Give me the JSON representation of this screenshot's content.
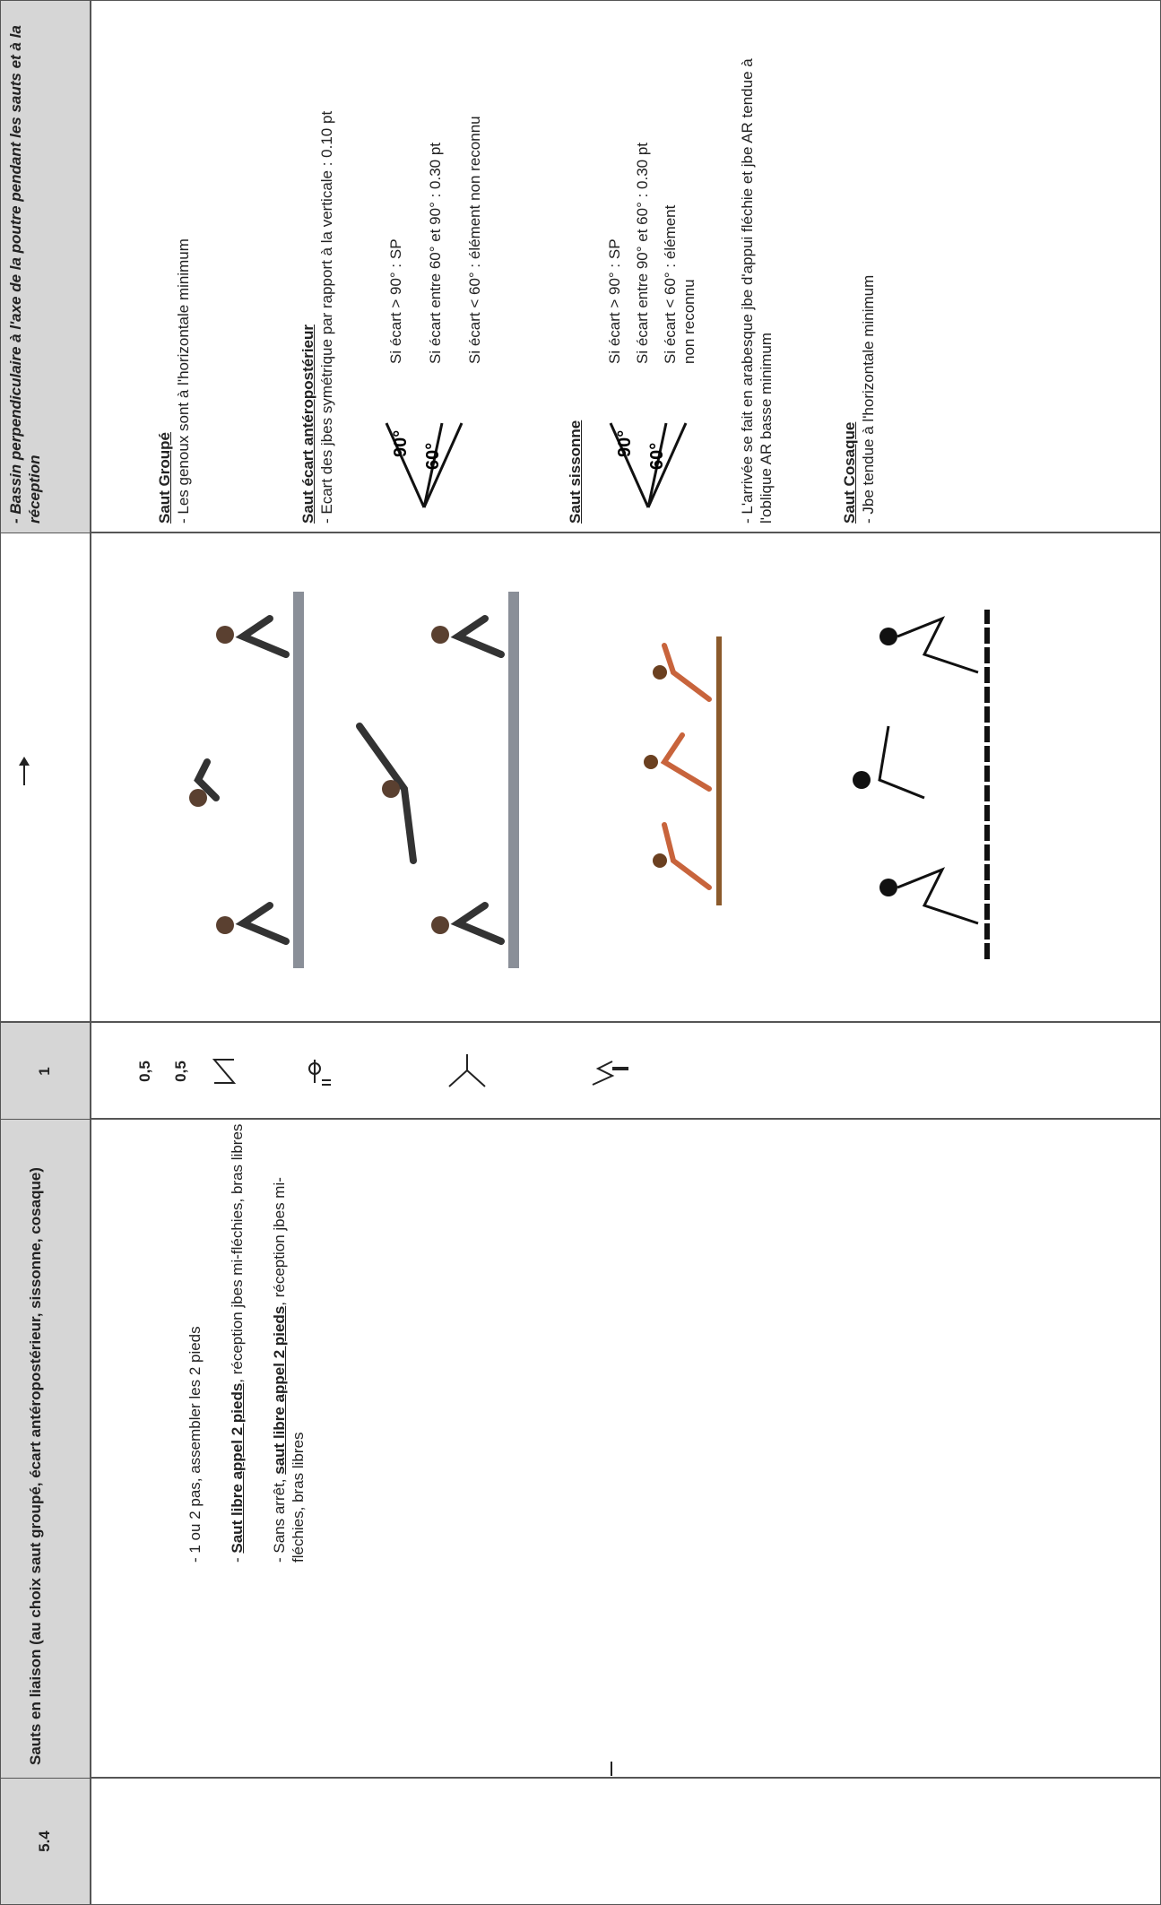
{
  "header": {
    "number": "5.4",
    "title": "Sauts en liaison (au choix saut groupé, écart antéropostérieur, sissonne, cosaque)",
    "coefficient": "1",
    "criteria": "- Bassin perpendiculaire à l'axe de la poutre pendant les sauts et à la réception"
  },
  "description": [
    {
      "text": "- 1 ou 2 pas, assembler les 2 pieds"
    },
    {
      "prefix": "- ",
      "emphasis": "Saut libre appel 2 pieds",
      "rest": ", réception jbes mi-fléchies, bras libres"
    },
    {
      "prefix": "- Sans arrêt, ",
      "emphasis": "saut libre appel 2 pieds",
      "rest": ", réception jbes mi-fléchies, bras libres"
    }
  ],
  "points": [
    "0,5",
    "0,5"
  ],
  "criteria": {
    "groupe": {
      "title": "Saut Groupé",
      "lines": [
        "- Les genoux sont à l'horizontale minimum"
      ]
    },
    "ecart": {
      "title": "Saut écart antéropostérieur",
      "lines": [
        "- Ecart des jbes symétrique par rapport à la verticale : 0.10 pt"
      ],
      "angles": [
        "90°",
        "60°"
      ],
      "conditions": [
        "Si écart > 90° : SP",
        "Si écart entre 60° et 90° : 0.30 pt",
        "Si écart < 60° : élément non reconnu"
      ]
    },
    "sissonne": {
      "title": "Saut sissonne",
      "angles": [
        "90°",
        "60°"
      ],
      "conditions": [
        "Si écart > 90° : SP",
        "Si écart entre 90° et 60° : 0.30 pt",
        "Si écart < 60° : élément non reconnu"
      ],
      "note": "- L'arrivée se fait en arabesque jbe d'appui fléchie et jbe AR tendue à l'oblique AR basse minimum"
    },
    "cosaque": {
      "title": "Saut Cosaque",
      "lines": [
        "- Jbe tendue à l'horizontale minimum"
      ]
    }
  }
}
